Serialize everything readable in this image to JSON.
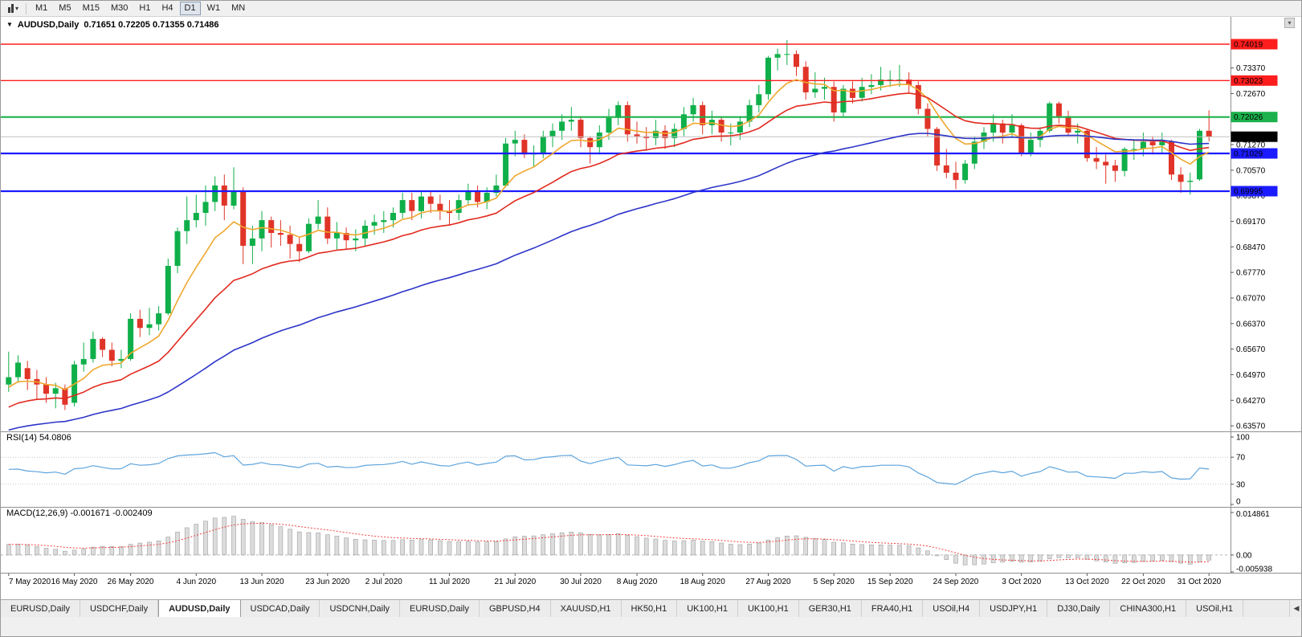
{
  "toolbar": {
    "timeframes": [
      "M1",
      "M5",
      "M15",
      "M30",
      "H1",
      "H4",
      "D1",
      "W1",
      "MN"
    ],
    "active": "D1"
  },
  "chart": {
    "symbol": "AUDUSD,Daily",
    "ohlc": "0.71651 0.72205 0.71355 0.71486"
  },
  "panels": {
    "rsi": {
      "label": "RSI(14) 54.0806",
      "scale": [
        {
          "label": "100",
          "value": 100
        },
        {
          "label": "70",
          "value": 70
        },
        {
          "label": "30",
          "value": 30
        },
        {
          "label": "0",
          "value": 0
        }
      ],
      "level_lines": [
        70,
        30
      ]
    },
    "macd": {
      "label": "MACD(12,26,9) -0.001671 -0.002409",
      "scale": [
        {
          "label": "0.014861",
          "value": 0.014861
        },
        {
          "label": "0.00",
          "value": 0
        },
        {
          "label": "-0.005938",
          "value": -0.005938
        }
      ]
    }
  },
  "price_axis": {
    "ticks": [
      "0.73370",
      "0.72670",
      "0.71970",
      "0.71270",
      "0.70570",
      "0.69870",
      "0.69170",
      "0.68470",
      "0.67770",
      "0.67070",
      "0.66370",
      "0.65670",
      "0.64970",
      "0.64270",
      "0.63570"
    ]
  },
  "time_axis": {
    "labels": [
      "7 May 2020",
      "16 May 2020",
      "26 May 2020",
      "4 Jun 2020",
      "13 Jun 2020",
      "23 Jun 2020",
      "2 Jul 2020",
      "11 Jul 2020",
      "21 Jul 2020",
      "30 Jul 2020",
      "8 Aug 2020",
      "18 Aug 2020",
      "27 Aug 2020",
      "5 Sep 2020",
      "15 Sep 2020",
      "24 Sep 2020",
      "3 Oct 2020",
      "13 Oct 2020",
      "22 Oct 2020",
      "31 Oct 2020"
    ]
  },
  "tabs": {
    "items": [
      "EURUSD,Daily",
      "USDCHF,Daily",
      "AUDUSD,Daily",
      "USDCAD,Daily",
      "USDCNH,Daily",
      "EURUSD,Daily",
      "GBPUSD,H4",
      "XAUUSD,H1",
      "HK50,H1",
      "UK100,H1",
      "UK100,H1",
      "GER30,H1",
      "FRA40,H1",
      "USOil,H4",
      "USDJPY,H1",
      "DJ30,Daily",
      "CHINA300,H1",
      "USOil,H1"
    ],
    "active_index": 2
  },
  "colors": {
    "bull": "#0faf4a",
    "bear": "#e03428",
    "ma_fast": "#efa72e",
    "ma_mid": "#e22a1f",
    "ma_slow": "#2d35c8",
    "rsi": "#5ea4dc",
    "macd_hist_fill": "#dcdcdc",
    "macd_hist_stroke": "#9e9e9e",
    "macd_signal": "#f04040",
    "level_red": "#fe1d1d",
    "level_green": "#1cb14c",
    "level_blue": "#1b1bff",
    "bid_line": "#c0c0c0",
    "separator": "#909090",
    "axis_text": "#000000"
  },
  "chart_data": {
    "type": "candlestick",
    "symbol": "AUDUSD",
    "timeframe": "Daily",
    "current_bar": {
      "open": 0.71651,
      "high": 0.72205,
      "low": 0.71355,
      "close": 0.71486
    },
    "price_range": {
      "max": 0.7446,
      "min": 0.6344
    },
    "bid": {
      "price": 0.71486,
      "label": "0.71486"
    },
    "levels": [
      {
        "price": 0.74019,
        "label": "0.74019",
        "color": "#fe1d1d",
        "width": 1.4
      },
      {
        "price": 0.73023,
        "label": "0.73023",
        "color": "#fe1d1d",
        "width": 1.4
      },
      {
        "price": 0.72026,
        "label": "0.72026",
        "color": "#1cb14c",
        "width": 2.2
      },
      {
        "price": 0.71029,
        "label": "0.71029",
        "color": "#1b1bff",
        "width": 2.2
      },
      {
        "price": 0.69995,
        "label": "0.69995",
        "color": "#1b1bff",
        "width": 2.2
      }
    ],
    "overlays": [
      {
        "name": "ma-fast",
        "type": "ema",
        "period": 8,
        "color": "#efa72e",
        "seed": 0.6455
      },
      {
        "name": "ma-medium",
        "type": "ema",
        "period": 21,
        "color": "#e22a1f",
        "seed": 0.64
      },
      {
        "name": "ma-slow",
        "type": "ema",
        "period": 55,
        "color": "#2d35c8",
        "seed": 0.634
      }
    ],
    "indicators": {
      "rsi": {
        "period": 14,
        "current": 54.0806,
        "color": "#5ea4dc"
      },
      "macd": {
        "fast": 12,
        "slow": 26,
        "signal": 9,
        "main": -0.001671,
        "signal_value": -0.002409,
        "range": {
          "max": 0.014861,
          "min": -0.005938
        }
      }
    },
    "candles": [
      [
        0.647,
        0.656,
        0.645,
        0.649
      ],
      [
        0.649,
        0.655,
        0.6475,
        0.653
      ],
      [
        0.6515,
        0.6535,
        0.6455,
        0.6485
      ],
      [
        0.6485,
        0.651,
        0.643,
        0.647
      ],
      [
        0.647,
        0.649,
        0.642,
        0.6445
      ],
      [
        0.6445,
        0.6475,
        0.6405,
        0.646
      ],
      [
        0.646,
        0.647,
        0.64,
        0.6415
      ],
      [
        0.642,
        0.6535,
        0.641,
        0.6525
      ],
      [
        0.6525,
        0.6585,
        0.6505,
        0.654
      ],
      [
        0.654,
        0.6615,
        0.653,
        0.6595
      ],
      [
        0.6595,
        0.66,
        0.6545,
        0.6565
      ],
      [
        0.6565,
        0.6585,
        0.652,
        0.6535
      ],
      [
        0.6535,
        0.6565,
        0.6515,
        0.654
      ],
      [
        0.654,
        0.6665,
        0.6535,
        0.665
      ],
      [
        0.665,
        0.6675,
        0.66,
        0.6625
      ],
      [
        0.6625,
        0.668,
        0.6605,
        0.6635
      ],
      [
        0.6635,
        0.6685,
        0.6618,
        0.6665
      ],
      [
        0.6665,
        0.6815,
        0.666,
        0.6795
      ],
      [
        0.6795,
        0.69,
        0.6775,
        0.689
      ],
      [
        0.689,
        0.6985,
        0.6855,
        0.692
      ],
      [
        0.692,
        0.699,
        0.69,
        0.694
      ],
      [
        0.694,
        0.7015,
        0.6905,
        0.697
      ],
      [
        0.697,
        0.704,
        0.6945,
        0.7015
      ],
      [
        0.7015,
        0.7045,
        0.692,
        0.696
      ],
      [
        0.696,
        0.7065,
        0.695,
        0.7
      ],
      [
        0.7,
        0.701,
        0.68,
        0.685
      ],
      [
        0.685,
        0.6905,
        0.68,
        0.687
      ],
      [
        0.687,
        0.6945,
        0.6835,
        0.692
      ],
      [
        0.692,
        0.693,
        0.6845,
        0.6885
      ],
      [
        0.6885,
        0.692,
        0.685,
        0.688
      ],
      [
        0.688,
        0.6905,
        0.6815,
        0.6855
      ],
      [
        0.6855,
        0.6875,
        0.6805,
        0.6835
      ],
      [
        0.6835,
        0.6925,
        0.683,
        0.691
      ],
      [
        0.691,
        0.6975,
        0.6895,
        0.693
      ],
      [
        0.693,
        0.6955,
        0.6855,
        0.687
      ],
      [
        0.687,
        0.6915,
        0.684,
        0.6885
      ],
      [
        0.6885,
        0.69,
        0.684,
        0.6865
      ],
      [
        0.6865,
        0.6895,
        0.6835,
        0.687
      ],
      [
        0.687,
        0.692,
        0.685,
        0.6905
      ],
      [
        0.6905,
        0.6935,
        0.688,
        0.6915
      ],
      [
        0.6915,
        0.6945,
        0.6885,
        0.692
      ],
      [
        0.692,
        0.6955,
        0.69,
        0.694
      ],
      [
        0.694,
        0.6995,
        0.6925,
        0.6975
      ],
      [
        0.6975,
        0.6995,
        0.692,
        0.6945
      ],
      [
        0.6945,
        0.7,
        0.6925,
        0.6985
      ],
      [
        0.6985,
        0.7,
        0.694,
        0.6965
      ],
      [
        0.6965,
        0.699,
        0.692,
        0.6945
      ],
      [
        0.6945,
        0.6975,
        0.6905,
        0.694
      ],
      [
        0.694,
        0.699,
        0.692,
        0.6975
      ],
      [
        0.6975,
        0.702,
        0.696,
        0.7
      ],
      [
        0.7,
        0.7015,
        0.6955,
        0.697
      ],
      [
        0.697,
        0.701,
        0.695,
        0.6995
      ],
      [
        0.6995,
        0.7045,
        0.6985,
        0.7015
      ],
      [
        0.7015,
        0.7145,
        0.701,
        0.713
      ],
      [
        0.713,
        0.7165,
        0.7095,
        0.714
      ],
      [
        0.714,
        0.7155,
        0.709,
        0.71
      ],
      [
        0.71,
        0.7125,
        0.7065,
        0.7105
      ],
      [
        0.7105,
        0.7165,
        0.709,
        0.715
      ],
      [
        0.715,
        0.7185,
        0.712,
        0.7165
      ],
      [
        0.7165,
        0.721,
        0.714,
        0.719
      ],
      [
        0.719,
        0.723,
        0.7165,
        0.7195
      ],
      [
        0.7195,
        0.7205,
        0.712,
        0.7145
      ],
      [
        0.7145,
        0.715,
        0.7075,
        0.712
      ],
      [
        0.712,
        0.718,
        0.71,
        0.716
      ],
      [
        0.716,
        0.7225,
        0.714,
        0.72
      ],
      [
        0.72,
        0.7245,
        0.718,
        0.7235
      ],
      [
        0.7235,
        0.7245,
        0.7135,
        0.7155
      ],
      [
        0.7155,
        0.719,
        0.713,
        0.715
      ],
      [
        0.715,
        0.7175,
        0.711,
        0.7145
      ],
      [
        0.7145,
        0.7195,
        0.7125,
        0.7165
      ],
      [
        0.7165,
        0.718,
        0.7115,
        0.7145
      ],
      [
        0.7145,
        0.7185,
        0.712,
        0.717
      ],
      [
        0.717,
        0.723,
        0.715,
        0.721
      ],
      [
        0.721,
        0.7255,
        0.719,
        0.7235
      ],
      [
        0.7235,
        0.7245,
        0.7155,
        0.718
      ],
      [
        0.718,
        0.722,
        0.7155,
        0.7195
      ],
      [
        0.7195,
        0.7205,
        0.7135,
        0.716
      ],
      [
        0.716,
        0.7185,
        0.7125,
        0.716
      ],
      [
        0.716,
        0.7205,
        0.714,
        0.719
      ],
      [
        0.719,
        0.725,
        0.7175,
        0.7235
      ],
      [
        0.7235,
        0.729,
        0.7215,
        0.7265
      ],
      [
        0.7265,
        0.737,
        0.725,
        0.7365
      ],
      [
        0.7365,
        0.739,
        0.733,
        0.7375
      ],
      [
        0.7375,
        0.7413,
        0.7345,
        0.7375
      ],
      [
        0.7375,
        0.7385,
        0.7315,
        0.734
      ],
      [
        0.734,
        0.7355,
        0.725,
        0.727
      ],
      [
        0.727,
        0.7325,
        0.7255,
        0.728
      ],
      [
        0.728,
        0.731,
        0.725,
        0.7285
      ],
      [
        0.7285,
        0.73,
        0.719,
        0.7215
      ],
      [
        0.7215,
        0.729,
        0.7205,
        0.728
      ],
      [
        0.728,
        0.73,
        0.724,
        0.7255
      ],
      [
        0.7255,
        0.731,
        0.7245,
        0.7285
      ],
      [
        0.7285,
        0.732,
        0.7265,
        0.729
      ],
      [
        0.729,
        0.734,
        0.7275,
        0.7305
      ],
      [
        0.7305,
        0.733,
        0.7285,
        0.7305
      ],
      [
        0.7305,
        0.7345,
        0.7285,
        0.7305
      ],
      [
        0.7305,
        0.7325,
        0.727,
        0.729
      ],
      [
        0.729,
        0.73,
        0.721,
        0.7225
      ],
      [
        0.7225,
        0.724,
        0.715,
        0.717
      ],
      [
        0.717,
        0.7175,
        0.7055,
        0.707
      ],
      [
        0.707,
        0.7115,
        0.7035,
        0.705
      ],
      [
        0.705,
        0.708,
        0.7005,
        0.703
      ],
      [
        0.703,
        0.7085,
        0.702,
        0.7075
      ],
      [
        0.7075,
        0.715,
        0.706,
        0.7135
      ],
      [
        0.7135,
        0.7175,
        0.7115,
        0.716
      ],
      [
        0.716,
        0.721,
        0.7135,
        0.7185
      ],
      [
        0.7185,
        0.7195,
        0.713,
        0.716
      ],
      [
        0.716,
        0.721,
        0.7145,
        0.718
      ],
      [
        0.718,
        0.7185,
        0.7095,
        0.7105
      ],
      [
        0.7105,
        0.716,
        0.7095,
        0.714
      ],
      [
        0.714,
        0.7175,
        0.712,
        0.7165
      ],
      [
        0.7165,
        0.7245,
        0.716,
        0.724
      ],
      [
        0.724,
        0.7245,
        0.7185,
        0.7205
      ],
      [
        0.7205,
        0.722,
        0.715,
        0.716
      ],
      [
        0.716,
        0.7185,
        0.713,
        0.7165
      ],
      [
        0.7165,
        0.717,
        0.708,
        0.709
      ],
      [
        0.709,
        0.712,
        0.706,
        0.708
      ],
      [
        0.708,
        0.71,
        0.702,
        0.707
      ],
      [
        0.707,
        0.7085,
        0.7025,
        0.7055
      ],
      [
        0.7055,
        0.712,
        0.704,
        0.7115
      ],
      [
        0.7115,
        0.714,
        0.7085,
        0.7115
      ],
      [
        0.7115,
        0.716,
        0.7095,
        0.7135
      ],
      [
        0.7135,
        0.715,
        0.71,
        0.7125
      ],
      [
        0.7125,
        0.716,
        0.7105,
        0.7135
      ],
      [
        0.7135,
        0.714,
        0.703,
        0.7045
      ],
      [
        0.7045,
        0.7065,
        0.6995,
        0.7025
      ],
      [
        0.7025,
        0.705,
        0.699,
        0.7028
      ],
      [
        0.7032,
        0.717,
        0.7028,
        0.7165
      ],
      [
        0.7165,
        0.7221,
        0.7136,
        0.7149
      ]
    ]
  }
}
